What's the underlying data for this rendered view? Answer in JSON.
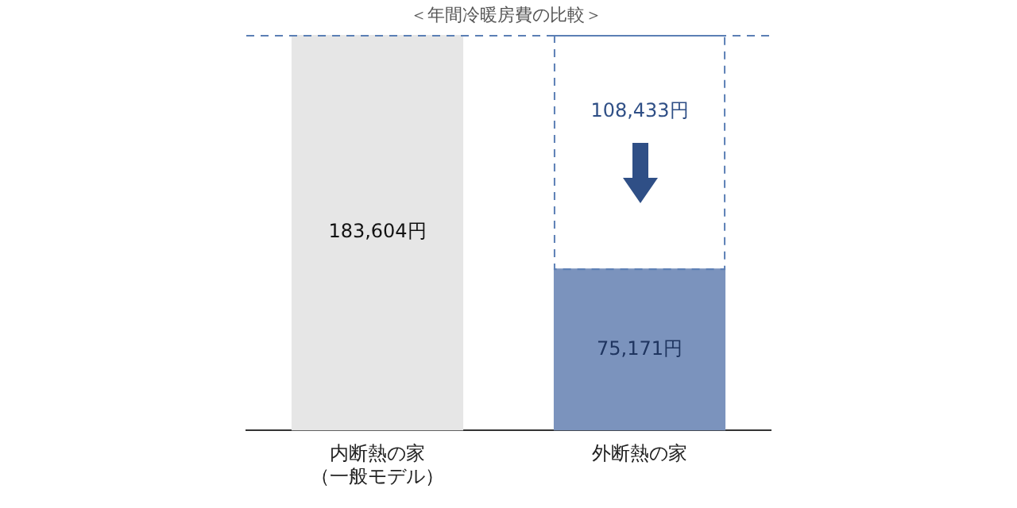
{
  "chart_data": {
    "type": "bar",
    "title": "＜年間冷暖房費の比較＞",
    "stacked": true,
    "categories": [
      "内断熱の家（一般モデル）",
      "外断熱の家"
    ],
    "series": [
      {
        "color": "#e6e6e6",
        "colors": [
          "#e6e6e6",
          "#7b93bd"
        ],
        "values": [
          183604,
          75171
        ],
        "value_labels": [
          "183,604円",
          "75,171円"
        ]
      },
      {
        "color": "#5b7fb5",
        "line_style": "dashed",
        "values": [
          null,
          108433
        ],
        "value_labels": [
          null,
          "108,433円"
        ]
      }
    ],
    "ylim": [
      0,
      183604
    ],
    "tick_labels": "x",
    "grid": false,
    "legend": false,
    "ref_lines": [
      {
        "axis": "y",
        "value": 183604,
        "color": "#5b7fb5",
        "line_style": "dashed"
      }
    ]
  }
}
